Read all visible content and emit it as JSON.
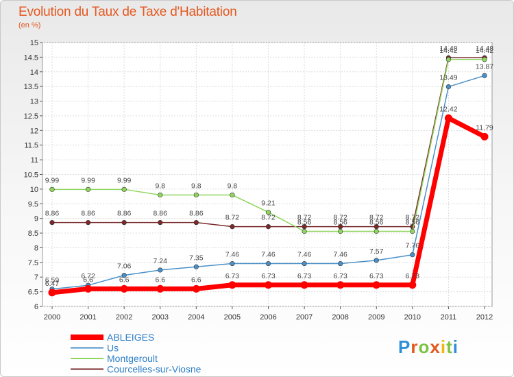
{
  "title": "Evolution du Taux de Taxe d'Habitation",
  "subtitle": "(en %)",
  "logo": "Proxiti",
  "chart_data": {
    "type": "line",
    "title": "Evolution du Taux de Taxe d'Habitation",
    "ylabel": "(en %)",
    "xlabel": "",
    "ylim": [
      6,
      15
    ],
    "y_ticks": [
      "6",
      "6.5",
      "7",
      "7.5",
      "8",
      "8.5",
      "9",
      "9.5",
      "10",
      "10.5",
      "11",
      "11.5",
      "12",
      "12.5",
      "13",
      "13.5",
      "14",
      "14.5",
      "15"
    ],
    "categories": [
      "2000",
      "2001",
      "2002",
      "2003",
      "2004",
      "2005",
      "2006",
      "2007",
      "2008",
      "2009",
      "2010",
      "2011",
      "2012"
    ],
    "grid": true,
    "legend_position": "bottom-left",
    "series": [
      {
        "name": "ABLEIGES",
        "color": "#ff0000",
        "values": [
          6.47,
          6.6,
          6.6,
          6.6,
          6.6,
          6.73,
          6.73,
          6.73,
          6.73,
          6.73,
          6.73,
          12.42,
          11.79
        ],
        "labels": [
          "6.47",
          "6.6",
          "6.6",
          "6.6",
          "6.6",
          "6.73",
          "6.73",
          "6.73",
          "6.73",
          "6.73",
          "6.73",
          "12.42",
          "11.79"
        ]
      },
      {
        "name": "Us",
        "color": "#4a90c8",
        "values": [
          6.59,
          6.72,
          7.06,
          7.24,
          7.35,
          7.46,
          7.46,
          7.46,
          7.46,
          7.57,
          7.76,
          13.49,
          13.87
        ],
        "labels": [
          "6.59",
          "6.72",
          "7.06",
          "7.24",
          "7.35",
          "7.46",
          "7.46",
          "7.46",
          "7.46",
          "7.57",
          "7.76",
          "13.49",
          "13.87"
        ]
      },
      {
        "name": "Montgeroult",
        "color": "#8fd65e",
        "values": [
          9.99,
          9.99,
          9.99,
          9.8,
          9.8,
          9.8,
          9.21,
          8.56,
          8.56,
          8.56,
          8.56,
          14.42,
          14.42
        ],
        "labels": [
          "9.99",
          "9.99",
          "9.99",
          "9.8",
          "9.8",
          "9.8",
          "9.21",
          "8.56",
          "8.56",
          "8.56",
          "8.56",
          "14.42",
          "14.42"
        ]
      },
      {
        "name": "Courcelles-sur-Viosne",
        "color": "#7a2a2a",
        "values": [
          8.86,
          8.86,
          8.86,
          8.86,
          8.86,
          8.72,
          8.72,
          8.72,
          8.72,
          8.72,
          8.72,
          14.48,
          14.48
        ],
        "labels": [
          "8.86",
          "8.86",
          "8.86",
          "8.86",
          "8.86",
          "8.72",
          "8.72",
          "8.72",
          "8.72",
          "8.72",
          "8.72",
          "14.48",
          "14.48"
        ]
      }
    ]
  }
}
